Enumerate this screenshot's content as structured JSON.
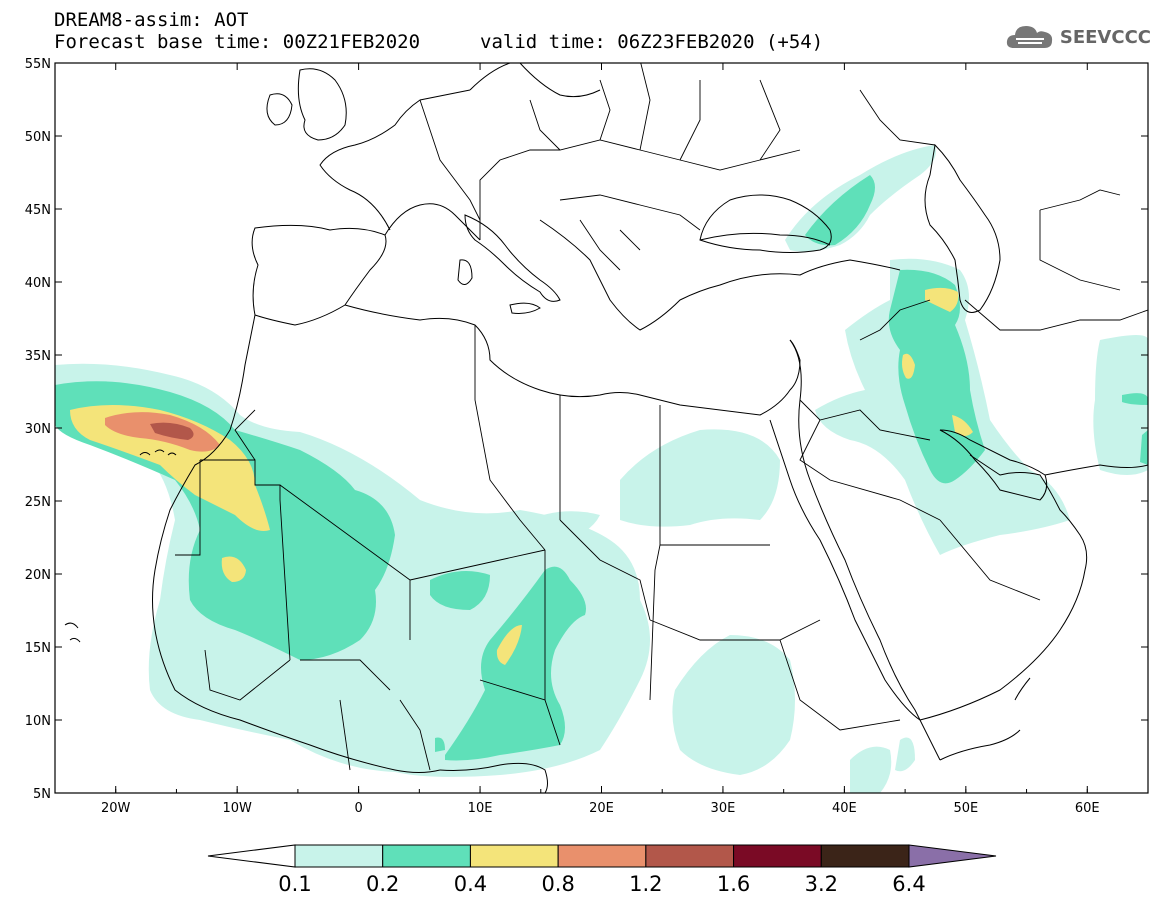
{
  "header": {
    "title": "DREAM8-assim: AOT",
    "base_time": "Forecast base time: 00Z21FEB2020",
    "valid_time": "valid time: 06Z23FEB2020 (+54)"
  },
  "logo": {
    "text": "SEEVCCC",
    "icon": "cloud-icon"
  },
  "map": {
    "lat_labels": [
      "55N",
      "50N",
      "45N",
      "40N",
      "35N",
      "30N",
      "25N",
      "20N",
      "15N",
      "10N",
      "5N"
    ],
    "lon_labels": [
      "20W",
      "10W",
      "0",
      "10E",
      "20E",
      "30E",
      "40E",
      "50E",
      "60E"
    ],
    "lon_range": [
      -25,
      65
    ],
    "lat_range": [
      5,
      55
    ]
  },
  "colorbar": {
    "colors": [
      "#ffffff",
      "#c8f3ea",
      "#5fe0b9",
      "#f4e47a",
      "#e9906c",
      "#b2574a",
      "#7a0a25",
      "#3b2418",
      "#8a6fa8"
    ],
    "labels": [
      "0.1",
      "0.2",
      "0.4",
      "0.8",
      "1.2",
      "1.6",
      "3.2",
      "6.4"
    ]
  }
}
